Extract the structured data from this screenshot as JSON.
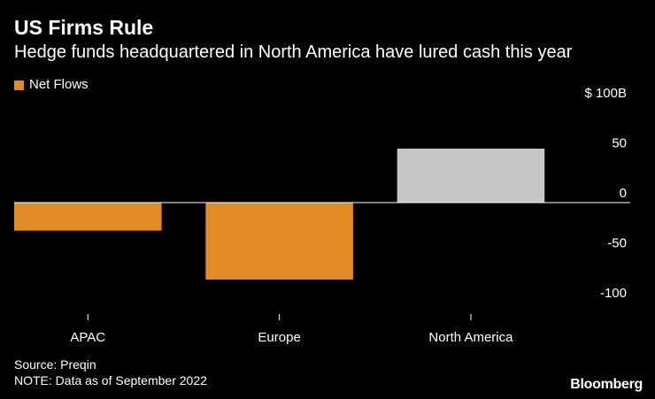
{
  "header": {
    "title": "US Firms Rule",
    "subtitle": "Hedge funds headquartered in North America have lured cash this year"
  },
  "legend": {
    "label": "Net Flows",
    "color": "#e08b25"
  },
  "colors": {
    "negative": "#e08b25",
    "positive": "#c6c6c6",
    "zero_line": "#ffffff",
    "tick": "#ffffff"
  },
  "chart_data": {
    "type": "bar",
    "title": "US Firms Rule",
    "subtitle": "Hedge funds headquartered in North America have lured cash this year",
    "categories": [
      "APAC",
      "Europe",
      "North America"
    ],
    "series": [
      {
        "name": "Net Flows",
        "values": [
          -28,
          -77,
          54
        ]
      }
    ],
    "ylim": [
      -100,
      100
    ],
    "yticks": [
      100,
      50,
      0,
      -50,
      -100
    ],
    "ytick_labels": [
      "$ 100B",
      "50",
      "0",
      "-50",
      "-100"
    ],
    "xlabel": "",
    "ylabel": "",
    "grid": false,
    "legend_position": "top-left"
  },
  "footer": {
    "source": "Source: Preqin",
    "note": "NOTE: Data as of September 2022",
    "brand": "Bloomberg"
  }
}
